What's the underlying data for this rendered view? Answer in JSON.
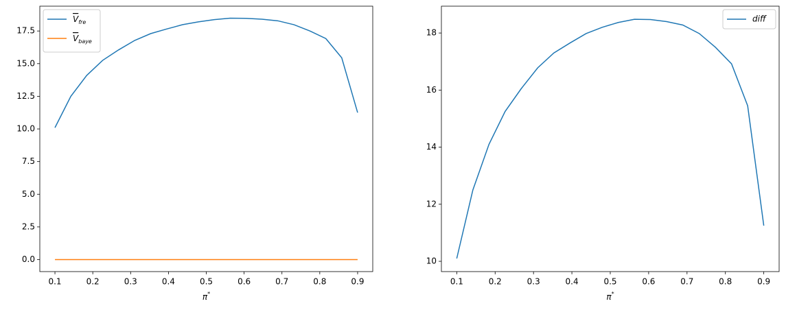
{
  "chart_data": [
    {
      "type": "line",
      "x": [
        0.1,
        0.142,
        0.184,
        0.226,
        0.268,
        0.311,
        0.353,
        0.395,
        0.437,
        0.479,
        0.521,
        0.563,
        0.605,
        0.647,
        0.689,
        0.732,
        0.774,
        0.816,
        0.858,
        0.9
      ],
      "series": [
        {
          "name": "Vfre",
          "color": "#1f77b4",
          "values": [
            10.1,
            12.5,
            14.1,
            15.25,
            16.05,
            16.78,
            17.3,
            17.65,
            17.98,
            18.2,
            18.37,
            18.48,
            18.47,
            18.4,
            18.28,
            17.98,
            17.5,
            16.92,
            15.45,
            11.25
          ]
        },
        {
          "name": "Vbaye",
          "color": "#ff7f0e",
          "values": [
            0,
            0,
            0,
            0,
            0,
            0,
            0,
            0,
            0,
            0,
            0,
            0,
            0,
            0,
            0,
            0,
            0,
            0,
            0,
            0
          ]
        }
      ],
      "xlabel": "π*",
      "xlim": [
        0.06,
        0.94
      ],
      "xticks": [
        0.1,
        0.2,
        0.3,
        0.4,
        0.5,
        0.6,
        0.7,
        0.8,
        0.9
      ],
      "ylim": [
        -0.92,
        19.4
      ],
      "yticks": [
        {
          "value": 0,
          "label": "0.0"
        },
        2.5,
        {
          "value": 5,
          "label": "5.0"
        },
        7.5,
        {
          "value": 10,
          "label": "10.0"
        },
        12.5,
        {
          "value": 15,
          "label": "15.0"
        },
        17.5
      ],
      "legend": "upper left"
    },
    {
      "type": "line",
      "x": [
        0.1,
        0.142,
        0.184,
        0.226,
        0.268,
        0.311,
        0.353,
        0.395,
        0.437,
        0.479,
        0.521,
        0.563,
        0.605,
        0.647,
        0.689,
        0.732,
        0.774,
        0.816,
        0.858,
        0.9
      ],
      "series": [
        {
          "name": "diff",
          "color": "#1f77b4",
          "values": [
            10.1,
            12.5,
            14.1,
            15.25,
            16.05,
            16.78,
            17.3,
            17.65,
            17.98,
            18.2,
            18.37,
            18.48,
            18.47,
            18.4,
            18.28,
            17.98,
            17.5,
            16.92,
            15.45,
            11.25
          ]
        }
      ],
      "xlabel": "π*",
      "xlim": [
        0.06,
        0.94
      ],
      "xticks": [
        0.1,
        0.2,
        0.3,
        0.4,
        0.5,
        0.6,
        0.7,
        0.8,
        0.9
      ],
      "ylim": [
        9.64,
        18.94
      ],
      "yticks": [
        10,
        12,
        14,
        16,
        18
      ],
      "legend": "upper right"
    }
  ]
}
